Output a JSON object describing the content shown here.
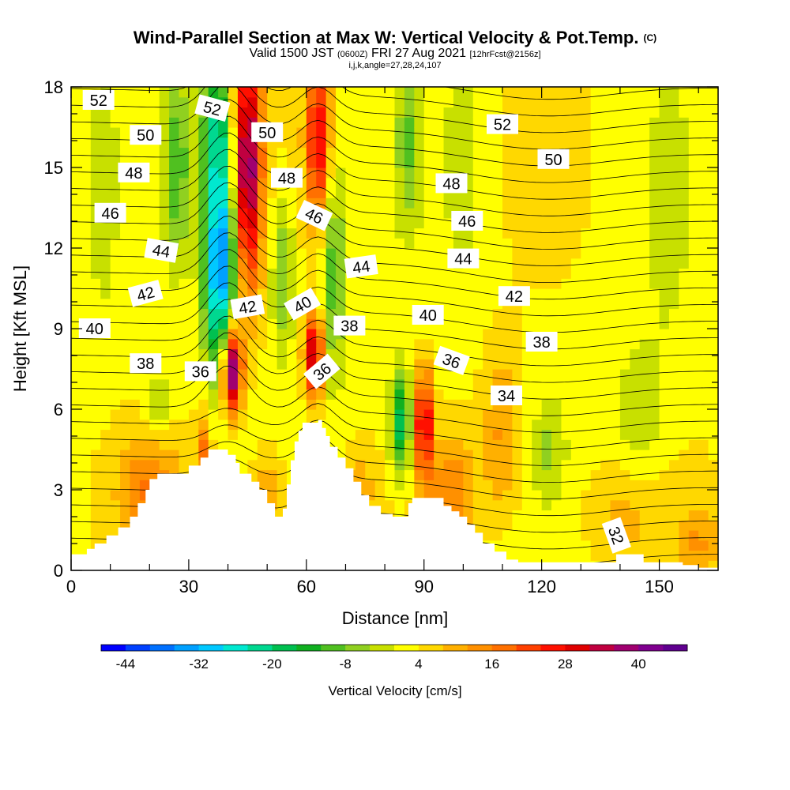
{
  "header": {
    "title": "Wind-Parallel Section at Max W: Vertical Velocity & Pot.Temp.",
    "title_mark": "(C)",
    "valid_prefix": "Valid 1500 JST",
    "valid_utc": "(0600Z)",
    "valid_date": "FRI 27 Aug 2021",
    "forecast": "[12hrFcst@2156z]",
    "params": "i,j,k,angle=27,28,24,107"
  },
  "chart_data": {
    "type": "heatmap",
    "xlabel": "Distance [nm]",
    "ylabel": "Height [Kft MSL]",
    "xlim": [
      0,
      165
    ],
    "ylim": [
      0,
      18
    ],
    "x_ticks": [
      0,
      30,
      60,
      90,
      120,
      150
    ],
    "y_ticks": [
      0,
      3,
      6,
      9,
      12,
      15,
      18
    ],
    "colorbar": {
      "label": "Vertical Velocity [cm/s]",
      "tick_labels": [
        "-44",
        "-32",
        "-20",
        "-8",
        "4",
        "16",
        "28",
        "40"
      ],
      "tick_values": [
        -44,
        -32,
        -20,
        -8,
        4,
        16,
        28,
        40
      ],
      "range": [
        -48,
        48
      ],
      "colors": [
        "#0000ff",
        "#0040ff",
        "#0070ff",
        "#00a0ff",
        "#00c8ff",
        "#00e8d0",
        "#00d890",
        "#00c050",
        "#10b020",
        "#50c020",
        "#90d020",
        "#c8e000",
        "#ffff00",
        "#ffd800",
        "#ffb000",
        "#ff9000",
        "#ff7000",
        "#ff4000",
        "#ff1000",
        "#e00000",
        "#c00040",
        "#a00070",
        "#800090",
        "#600090"
      ]
    },
    "velocity_features": [
      {
        "x": 38,
        "y": 11.5,
        "sx": 4,
        "sy": 4,
        "v": -40
      },
      {
        "x": 37,
        "y": 16.5,
        "sx": 4,
        "sy": 2.5,
        "v": -18
      },
      {
        "x": 27,
        "y": 15,
        "sx": 3,
        "sy": 3.5,
        "v": -14
      },
      {
        "x": 45,
        "y": 15,
        "sx": 3.5,
        "sy": 4.5,
        "v": 36
      },
      {
        "x": 41,
        "y": 7.5,
        "sx": 2.5,
        "sy": 1.6,
        "v": 44
      },
      {
        "x": 54,
        "y": 11,
        "sx": 3,
        "sy": 3,
        "v": -12
      },
      {
        "x": 63,
        "y": 16,
        "sx": 3,
        "sy": 3,
        "v": 26
      },
      {
        "x": 62,
        "y": 8,
        "sx": 2.5,
        "sy": 1.6,
        "v": 30
      },
      {
        "x": 67,
        "y": 11,
        "sx": 3,
        "sy": 4,
        "v": -14
      },
      {
        "x": 84,
        "y": 5.5,
        "sx": 2.5,
        "sy": 2,
        "v": -22
      },
      {
        "x": 90,
        "y": 5.5,
        "sx": 2,
        "sy": 2,
        "v": 30
      },
      {
        "x": 86,
        "y": 16,
        "sx": 3,
        "sy": 3,
        "v": -10
      },
      {
        "x": 22,
        "y": 6.2,
        "sx": 3,
        "sy": 1.2,
        "v": -8
      },
      {
        "x": 122,
        "y": 4.5,
        "sx": 4,
        "sy": 1.8,
        "v": -7
      },
      {
        "x": 110,
        "y": 5,
        "sx": 5,
        "sy": 3,
        "v": 10
      },
      {
        "x": 8,
        "y": 14,
        "sx": 3,
        "sy": 4,
        "v": -6
      },
      {
        "x": 100,
        "y": 15,
        "sx": 4,
        "sy": 4,
        "v": -6
      },
      {
        "x": 152,
        "y": 13,
        "sx": 5,
        "sy": 5,
        "v": -4
      },
      {
        "x": 145,
        "y": 6,
        "sx": 6,
        "sy": 2.5,
        "v": -7
      },
      {
        "x": 140,
        "y": 2,
        "sx": 10,
        "sy": 2,
        "v": 6
      },
      {
        "x": 20,
        "y": 3,
        "sx": 8,
        "sy": 2,
        "v": 12
      },
      {
        "x": 34,
        "y": 4.5,
        "sx": 2,
        "sy": 1.5,
        "v": 14
      },
      {
        "x": 50,
        "y": 3,
        "sx": 4,
        "sy": 1.5,
        "v": 10
      },
      {
        "x": 73,
        "y": 3,
        "sx": 4,
        "sy": 1.5,
        "v": 8
      },
      {
        "x": 97,
        "y": 3,
        "sx": 6,
        "sy": 2,
        "v": 12
      },
      {
        "x": 160,
        "y": 1,
        "sx": 5,
        "sy": 1.5,
        "v": 8
      }
    ],
    "contour_labels": [
      {
        "text": "52",
        "x": 7,
        "y": 17.5,
        "angle": 0
      },
      {
        "text": "52",
        "x": 36,
        "y": 17.2,
        "angle": 15
      },
      {
        "text": "52",
        "x": 110,
        "y": 16.6,
        "angle": 0
      },
      {
        "text": "50",
        "x": 19,
        "y": 16.2,
        "angle": 0
      },
      {
        "text": "50",
        "x": 50,
        "y": 16.3,
        "angle": 0
      },
      {
        "text": "50",
        "x": 123,
        "y": 15.3,
        "angle": 0
      },
      {
        "text": "48",
        "x": 16,
        "y": 14.8,
        "angle": 0
      },
      {
        "text": "48",
        "x": 55,
        "y": 14.6,
        "angle": 0
      },
      {
        "text": "48",
        "x": 97,
        "y": 14.4,
        "angle": 0
      },
      {
        "text": "46",
        "x": 10,
        "y": 13.3,
        "angle": 0
      },
      {
        "text": "46",
        "x": 62,
        "y": 13.2,
        "angle": 25
      },
      {
        "text": "46",
        "x": 101,
        "y": 13.0,
        "angle": 0
      },
      {
        "text": "44",
        "x": 23,
        "y": 11.9,
        "angle": 10
      },
      {
        "text": "44",
        "x": 74,
        "y": 11.3,
        "angle": -8
      },
      {
        "text": "44",
        "x": 100,
        "y": 11.6,
        "angle": 0
      },
      {
        "text": "42",
        "x": 19,
        "y": 10.3,
        "angle": -15
      },
      {
        "text": "42",
        "x": 45,
        "y": 9.8,
        "angle": -10
      },
      {
        "text": "42",
        "x": 113,
        "y": 10.2,
        "angle": 0
      },
      {
        "text": "40",
        "x": 6,
        "y": 9.0,
        "angle": 0
      },
      {
        "text": "40",
        "x": 59,
        "y": 9.9,
        "angle": -30
      },
      {
        "text": "40",
        "x": 91,
        "y": 9.5,
        "angle": 0
      },
      {
        "text": "38",
        "x": 19,
        "y": 7.7,
        "angle": 0
      },
      {
        "text": "38",
        "x": 71,
        "y": 9.1,
        "angle": 0
      },
      {
        "text": "38",
        "x": 120,
        "y": 8.5,
        "angle": 0
      },
      {
        "text": "36",
        "x": 33,
        "y": 7.4,
        "angle": 0
      },
      {
        "text": "36",
        "x": 64,
        "y": 7.4,
        "angle": -40
      },
      {
        "text": "36",
        "x": 97,
        "y": 7.8,
        "angle": 20
      },
      {
        "text": "34",
        "x": 111,
        "y": 6.5,
        "angle": 0
      },
      {
        "text": "32",
        "x": 139,
        "y": 1.3,
        "angle": 70
      }
    ]
  }
}
